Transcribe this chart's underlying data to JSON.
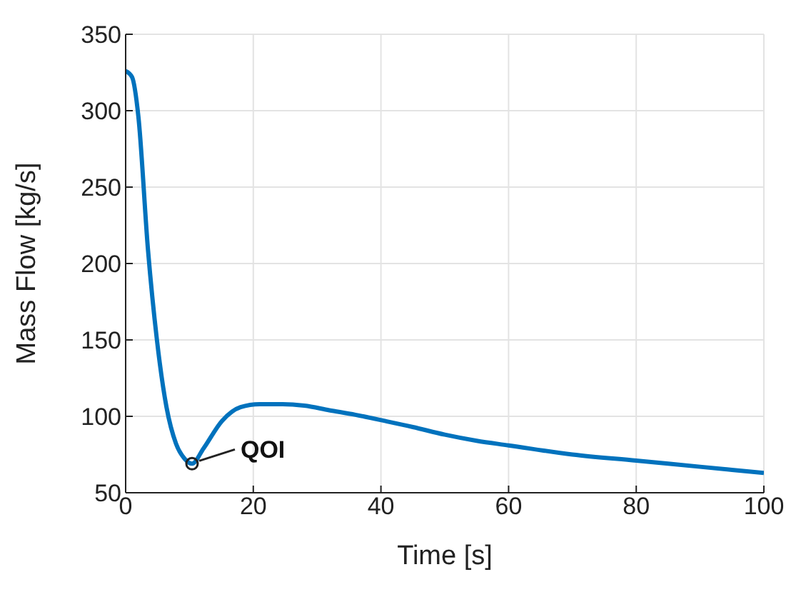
{
  "chart_data": {
    "type": "line",
    "xlabel": "Time [s]",
    "ylabel": "Mass Flow [kg/s]",
    "x": [
      0,
      1,
      2,
      3.5,
      4.9,
      6.4,
      7.9,
      9.3,
      10.4,
      12.2,
      15.1,
      18,
      21,
      24.6,
      28,
      31.9,
      36,
      40.6,
      45,
      50,
      55,
      60,
      70,
      80,
      90,
      100
    ],
    "series": [
      {
        "color": "#0072bd",
        "values": [
          326,
          322,
          296,
          209,
          150,
          106,
          82,
          72,
          69,
          79,
          97,
          106,
          108,
          108,
          107,
          104,
          101,
          97,
          93,
          88,
          84,
          81,
          75,
          71,
          67,
          63
        ]
      }
    ],
    "xlim": [
      0,
      100
    ],
    "xticks": [
      0,
      20,
      40,
      60,
      80,
      100
    ],
    "ylim": [
      50,
      350
    ],
    "yticks": [
      50,
      100,
      150,
      200,
      250,
      300,
      350
    ],
    "grid": true,
    "marker": "none",
    "line_style": "solid",
    "annotations": [
      {
        "text": "QOI",
        "x": 10.4,
        "y": 69
      }
    ]
  }
}
